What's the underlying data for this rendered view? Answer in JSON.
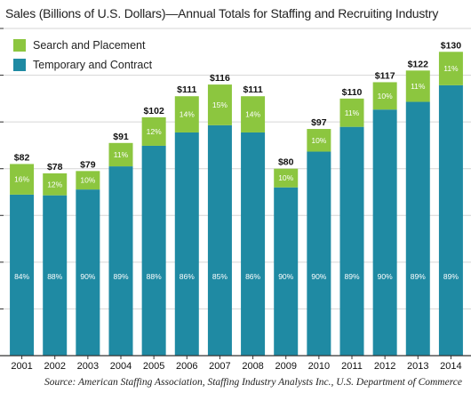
{
  "chart_data": {
    "type": "bar",
    "stacked": true,
    "title": "Sales (Billions of U.S. Dollars)—Annual Totals for Staffing and Recruiting Industry",
    "categories": [
      "2001",
      "2002",
      "2003",
      "2004",
      "2005",
      "2006",
      "2007",
      "2008",
      "2009",
      "2010",
      "2011",
      "2012",
      "2013",
      "2014"
    ],
    "totals": [
      82,
      78,
      79,
      91,
      102,
      111,
      116,
      111,
      80,
      97,
      110,
      117,
      122,
      130
    ],
    "total_labels": [
      "$82",
      "$78",
      "$79",
      "$91",
      "$102",
      "$111",
      "$116",
      "$111",
      "$80",
      "$97",
      "$110",
      "$117",
      "$122",
      "$130"
    ],
    "series": [
      {
        "name": "Temporary and Contract",
        "color": "#1f8aa3",
        "share_labels": [
          "84%",
          "88%",
          "90%",
          "89%",
          "88%",
          "86%",
          "85%",
          "86%",
          "90%",
          "90%",
          "89%",
          "90%",
          "89%",
          "89%"
        ],
        "values": [
          68.9,
          68.6,
          71.1,
          81.0,
          89.8,
          95.5,
          98.6,
          95.5,
          72.0,
          87.3,
          97.9,
          105.3,
          108.6,
          115.7
        ]
      },
      {
        "name": "Search and Placement",
        "color": "#8cc63f",
        "share_labels": [
          "16%",
          "12%",
          "10%",
          "11%",
          "12%",
          "14%",
          "15%",
          "14%",
          "10%",
          "10%",
          "11%",
          "10%",
          "11%",
          "11%"
        ],
        "values": [
          13.1,
          9.4,
          7.9,
          10.0,
          12.2,
          15.5,
          17.4,
          15.5,
          8.0,
          9.7,
          12.1,
          11.7,
          13.4,
          14.3
        ]
      }
    ],
    "ylim": [
      0,
      140
    ],
    "grid": true,
    "legend_position": "top-left",
    "source": "Source: American Staffing Association, Staffing Industry Analysts Inc., U.S. Department of Commerce"
  }
}
